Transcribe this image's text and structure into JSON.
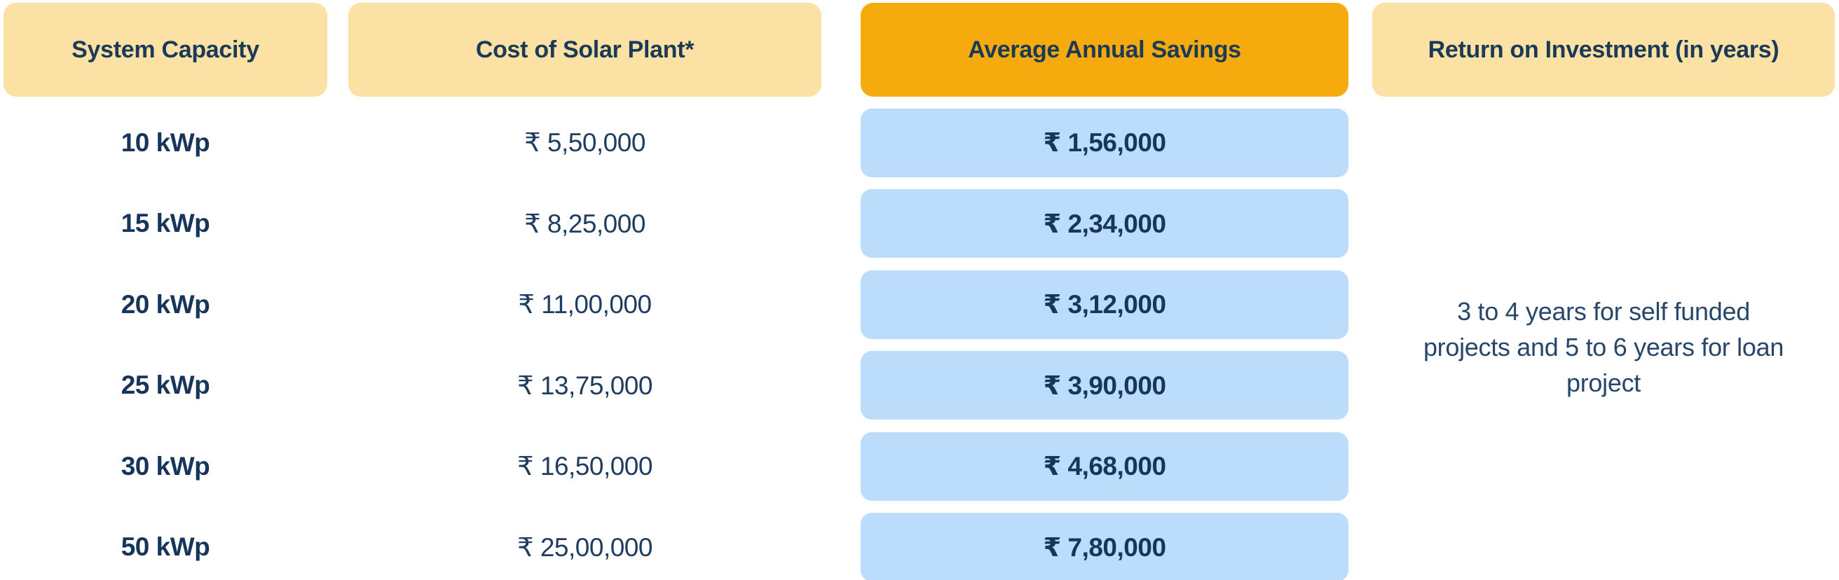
{
  "colors": {
    "header_cream": "#FBE1A4",
    "header_orange": "#F5AB0D",
    "savings_pill_blue": "#BBDCFB",
    "text_navy": "#1B3A57",
    "background": "#FFFFFF"
  },
  "chart_data": {
    "type": "table",
    "columns": [
      "System Capacity",
      "Cost of Solar Plant*",
      "Average Annual Savings",
      "Return on Investment (in years)"
    ],
    "rows": [
      {
        "capacity": "10 kWp",
        "cost": "₹ 5,50,000",
        "savings": "₹ 1,56,000"
      },
      {
        "capacity": "15 kWp",
        "cost": "₹ 8,25,000",
        "savings": "₹ 2,34,000"
      },
      {
        "capacity": "20 kWp",
        "cost": "₹ 11,00,000",
        "savings": "₹ 3,12,000"
      },
      {
        "capacity": "25 kWp",
        "cost": "₹ 13,75,000",
        "savings": "₹ 3,90,000"
      },
      {
        "capacity": "30 kWp",
        "cost": "₹ 16,50,000",
        "savings": "₹ 4,68,000"
      },
      {
        "capacity": "50 kWp",
        "cost": "₹ 25,00,000",
        "savings": "₹ 7,80,000"
      }
    ],
    "roi_note": "3 to 4 years for self funded projects and 5 to 6 years for loan project",
    "layout_hints": {
      "highlighted_column": "Average Annual Savings",
      "roi_note_spans_all_rows": true
    }
  }
}
